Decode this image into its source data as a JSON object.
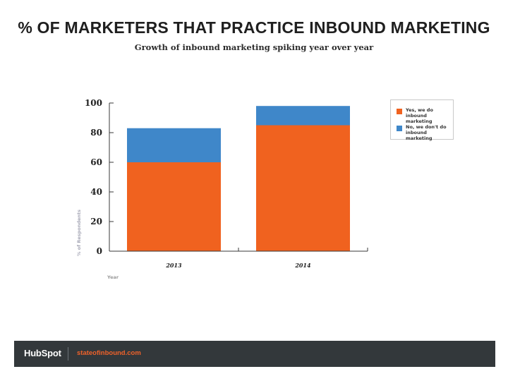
{
  "page": {
    "title": "% OF MARKETERS THAT PRACTICE INBOUND MARKETING",
    "subtitle": "Growth of inbound marketing spiking year over year"
  },
  "chart_data": {
    "type": "bar",
    "stacked": true,
    "categories": [
      "2013",
      "2014"
    ],
    "series": [
      {
        "name": "Yes, we do inbound marketing",
        "values": [
          60,
          85
        ],
        "color": "#f0621f"
      },
      {
        "name": "No, we don't do inbound marketing",
        "values": [
          23,
          13
        ],
        "color": "#3f87c9"
      }
    ],
    "xlabel": "Year",
    "ylabel": "% of Respondents",
    "ylim": [
      0,
      100
    ],
    "yticks": [
      0,
      20,
      40,
      60,
      80,
      100
    ],
    "grid": false,
    "legend_position": "top-right"
  },
  "footer": {
    "brand": "HubSpot",
    "site": "stateofinbound.com"
  }
}
